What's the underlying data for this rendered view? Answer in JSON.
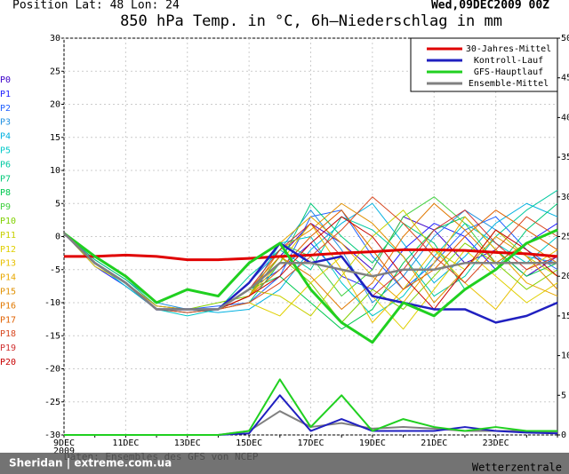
{
  "chart_data": {
    "type": "line",
    "header_left": "Position  Lat: 48  Lon: 24",
    "header_right": "Wed,09DEC2009 00Z",
    "title": "850 hPa Temp. in °C, 6h–Niederschlag in mm",
    "source_left": "Daten: Ensembles des GFS von NCEP",
    "source_right": "Wetterzentrale",
    "watermark": "Sheridan | extreme.com.ua",
    "x_sublabel": "2009",
    "categories": [
      "9DEC",
      null,
      "11DEC",
      null,
      "13DEC",
      null,
      "15DEC",
      null,
      "17DEC",
      null,
      "19DEC",
      null,
      "21DEC",
      null,
      "23DEC",
      null,
      null
    ],
    "ylim": [
      -30,
      30
    ],
    "yticks": [
      -30,
      -25,
      -20,
      -15,
      -10,
      -5,
      0,
      5,
      10,
      15,
      20,
      25,
      30
    ],
    "y2lim": [
      0,
      50
    ],
    "y2ticks": [
      0,
      5,
      10,
      15,
      20,
      25,
      30,
      35,
      40,
      45,
      50
    ],
    "legend": "upper right",
    "members": [
      {
        "name": "P0",
        "color": "#3c00c8",
        "values": [
          0.5,
          -4,
          -7,
          -10.5,
          -11,
          -11,
          -9,
          -3,
          2,
          -1,
          -5,
          3,
          1,
          -4,
          -2,
          -6,
          -3
        ]
      },
      {
        "name": "P1",
        "color": "#2020ff",
        "values": [
          0.5,
          -4.5,
          -7.5,
          -11,
          -11.5,
          -11,
          -8,
          -5,
          -1,
          -6,
          -8,
          -2,
          2,
          0,
          -5,
          -1,
          2
        ]
      },
      {
        "name": "P2",
        "color": "#2060ff",
        "values": [
          0.5,
          -4,
          -7,
          -11,
          -11,
          -10.5,
          -10,
          -6,
          3,
          4,
          -3,
          -8,
          -4,
          1,
          3,
          -2,
          -5
        ]
      },
      {
        "name": "P3",
        "color": "#2090e0",
        "values": [
          0.5,
          -3.5,
          -6.5,
          -10,
          -11,
          -11,
          -7,
          -2,
          4,
          -2,
          -10,
          -6,
          0,
          4,
          1,
          -3,
          -4
        ]
      },
      {
        "name": "P4",
        "color": "#00b0e0",
        "values": [
          0.5,
          -4,
          -7,
          -11,
          -11,
          -11.5,
          -11,
          -8,
          -2,
          2,
          5,
          -1,
          -7,
          -3,
          2,
          5,
          3
        ]
      },
      {
        "name": "P5",
        "color": "#00c8c8",
        "values": [
          0.5,
          -4,
          -7.5,
          -11,
          -12,
          -11,
          -9,
          -1,
          0,
          -7,
          -12,
          -9,
          -3,
          2,
          -1,
          -4,
          0
        ]
      },
      {
        "name": "P6",
        "color": "#00c8a0",
        "values": [
          0.5,
          -4,
          -7,
          -11,
          -11,
          -11,
          -6,
          -2,
          -5,
          3,
          1,
          -3,
          -9,
          -6,
          0,
          4,
          7
        ]
      },
      {
        "name": "P7",
        "color": "#00c878",
        "values": [
          0.5,
          -3.5,
          -6.5,
          -10.5,
          -11,
          -11,
          -10,
          -4,
          5,
          0,
          -4,
          2,
          -1,
          -8,
          -5,
          1,
          5
        ]
      },
      {
        "name": "P8",
        "color": "#00c850",
        "values": [
          0.5,
          -4,
          -7,
          -11,
          -11,
          -11,
          -8,
          -6,
          -10,
          -14,
          -11,
          -4,
          1,
          3,
          -2,
          -6,
          -4
        ]
      },
      {
        "name": "P9",
        "color": "#40d040",
        "values": [
          0.5,
          -4,
          -7,
          -11,
          -11.5,
          -11,
          -7,
          -1,
          -3,
          -9,
          -5,
          3,
          6,
          2,
          -4,
          -1,
          1
        ]
      },
      {
        "name": "P10",
        "color": "#80d000",
        "values": [
          0.5,
          -4,
          -7,
          -11,
          -11,
          -10,
          -9,
          -3,
          -7,
          -13,
          -8,
          -11,
          -6,
          -1,
          -4,
          -8,
          -5
        ]
      },
      {
        "name": "P11",
        "color": "#c8d000",
        "values": [
          0.5,
          -4,
          -7,
          -11,
          -11,
          -11,
          -8,
          -9,
          -12,
          -6,
          0,
          4,
          -2,
          -5,
          1,
          -3,
          -6
        ]
      },
      {
        "name": "P12",
        "color": "#e0d000",
        "values": [
          0.5,
          -4.5,
          -7,
          -11,
          -11,
          -11,
          -10,
          -12,
          -7,
          -3,
          -9,
          -14,
          -8,
          -2,
          -6,
          -10,
          -7
        ]
      },
      {
        "name": "P13",
        "color": "#e8c000",
        "values": [
          0.5,
          -4,
          -7,
          -11,
          -11,
          -11,
          -9,
          -4,
          2,
          -5,
          -13,
          -8,
          -2,
          -7,
          -11,
          -5,
          -2
        ]
      },
      {
        "name": "P14",
        "color": "#e8a800",
        "values": [
          0.5,
          -4,
          -7,
          -10.5,
          -11,
          -11,
          -7,
          -1,
          3,
          -1,
          -6,
          -10,
          -4,
          3,
          -2,
          -7,
          -9
        ]
      },
      {
        "name": "P15",
        "color": "#e09000",
        "values": [
          0.5,
          -4,
          -7,
          -11,
          -11,
          -11,
          -9,
          -2,
          1,
          5,
          2,
          -3,
          -10,
          -5,
          0,
          -3,
          -8
        ]
      },
      {
        "name": "P16",
        "color": "#e07800",
        "values": [
          0.5,
          -4,
          -7,
          -11,
          -11,
          -11,
          -8,
          -3,
          -6,
          -11,
          -7,
          0,
          5,
          1,
          -4,
          -1,
          -4
        ]
      },
      {
        "name": "P17",
        "color": "#e06000",
        "values": [
          0.5,
          -4,
          -7,
          -11,
          -11,
          -11,
          -9,
          -5,
          0,
          4,
          -2,
          -8,
          -5,
          0,
          4,
          1,
          -2
        ]
      },
      {
        "name": "P18",
        "color": "#d84820",
        "values": [
          0.5,
          -4,
          -7,
          -11,
          -11.5,
          -11,
          -10,
          -7,
          -3,
          1,
          6,
          2,
          -3,
          -7,
          -2,
          3,
          0
        ]
      },
      {
        "name": "P19",
        "color": "#d03030",
        "values": [
          0.5,
          -4,
          -7,
          -11,
          -11,
          -11,
          -8,
          -2,
          2,
          -3,
          -9,
          -5,
          1,
          4,
          -1,
          -5,
          -3
        ]
      },
      {
        "name": "P20",
        "color": "#c80000",
        "values": [
          0.5,
          -4,
          -7,
          -11,
          -11,
          -11,
          -9,
          -6,
          -1,
          3,
          0,
          -6,
          -11,
          -5,
          1,
          -2,
          -6
        ]
      }
    ],
    "series": [
      {
        "name": "30-Jahres-Mittel",
        "color": "#e00000",
        "values": [
          -3,
          -3,
          -2.8,
          -3,
          -3.5,
          -3.5,
          -3.3,
          -3,
          -2.8,
          -2.5,
          -2.3,
          -2,
          -2,
          -2.1,
          -2.4,
          -2.6,
          -3
        ]
      },
      {
        "name": "Kontroll-Lauf",
        "color": "#2020c0",
        "values": [
          0.5,
          -4,
          -7,
          -11,
          -11,
          -11,
          -7,
          -1,
          -4,
          -3,
          -9,
          -10,
          -11,
          -11,
          -13,
          -12,
          -10
        ]
      },
      {
        "name": "GFS-Hauptlauf",
        "color": "#20d020",
        "values": [
          0.5,
          -3,
          -6,
          -10,
          -8,
          -9,
          -4,
          -1,
          -8,
          -13,
          -16,
          -10,
          -12,
          -8,
          -5,
          -1,
          1
        ]
      },
      {
        "name": "Ensemble-Mittel",
        "color": "#808080",
        "values": [
          0.5,
          -4,
          -7,
          -11,
          -11,
          -11,
          -8,
          -4,
          -4,
          -5,
          -6,
          -5,
          -5,
          -4,
          -4,
          -4,
          -4
        ]
      }
    ],
    "precip_series": [
      {
        "color": "#808080",
        "axis": "y2",
        "values": [
          0,
          0,
          0,
          0,
          0,
          0,
          0.5,
          3,
          1,
          1.5,
          0.8,
          1,
          0.8,
          0.5,
          0.5,
          0.5,
          0.4
        ]
      },
      {
        "color": "#2020c0",
        "axis": "y2",
        "values": [
          0,
          0,
          0,
          0,
          0,
          0,
          0.2,
          5,
          0.5,
          2,
          0.5,
          0.5,
          0.5,
          1,
          0.5,
          0.3,
          0.2
        ]
      },
      {
        "color": "#20d020",
        "axis": "y2",
        "values": [
          0,
          0,
          0,
          0,
          0,
          0,
          0.5,
          7,
          1,
          5,
          0.5,
          2,
          1,
          0.5,
          1,
          0.5,
          0.5
        ]
      }
    ]
  }
}
